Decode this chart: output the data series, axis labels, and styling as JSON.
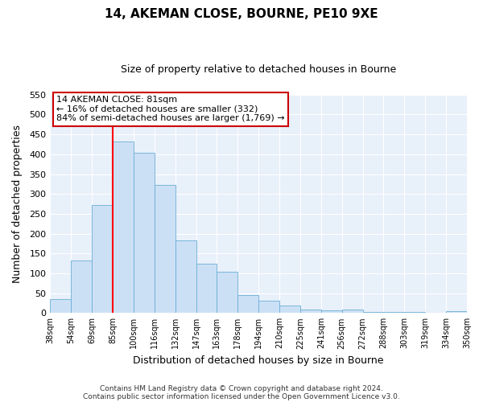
{
  "title": "14, AKEMAN CLOSE, BOURNE, PE10 9XE",
  "subtitle": "Size of property relative to detached houses in Bourne",
  "xlabel": "Distribution of detached houses by size in Bourne",
  "ylabel": "Number of detached properties",
  "bin_labels": [
    "38sqm",
    "54sqm",
    "69sqm",
    "85sqm",
    "100sqm",
    "116sqm",
    "132sqm",
    "147sqm",
    "163sqm",
    "178sqm",
    "194sqm",
    "210sqm",
    "225sqm",
    "241sqm",
    "256sqm",
    "272sqm",
    "288sqm",
    "303sqm",
    "319sqm",
    "334sqm",
    "350sqm"
  ],
  "bar_values": [
    35,
    133,
    272,
    432,
    403,
    322,
    183,
    125,
    103,
    46,
    30,
    18,
    8,
    6,
    8,
    3,
    3,
    3,
    0,
    5
  ],
  "bar_color": "#cce0f5",
  "bar_edge_color": "#6aaed6",
  "vline_x": 3,
  "vline_color": "red",
  "ylim": [
    0,
    550
  ],
  "yticks": [
    0,
    50,
    100,
    150,
    200,
    250,
    300,
    350,
    400,
    450,
    500,
    550
  ],
  "annotation_title": "14 AKEMAN CLOSE: 81sqm",
  "annotation_line1": "← 16% of detached houses are smaller (332)",
  "annotation_line2": "84% of semi-detached houses are larger (1,769) →",
  "annotation_box_color": "white",
  "annotation_box_edge": "#cc0000",
  "footer1": "Contains HM Land Registry data © Crown copyright and database right 2024.",
  "footer2": "Contains public sector information licensed under the Open Government Licence v3.0.",
  "bg_color": "#e8f0fa",
  "plot_bg_color": "#e8f0fa",
  "grid_color": "white"
}
